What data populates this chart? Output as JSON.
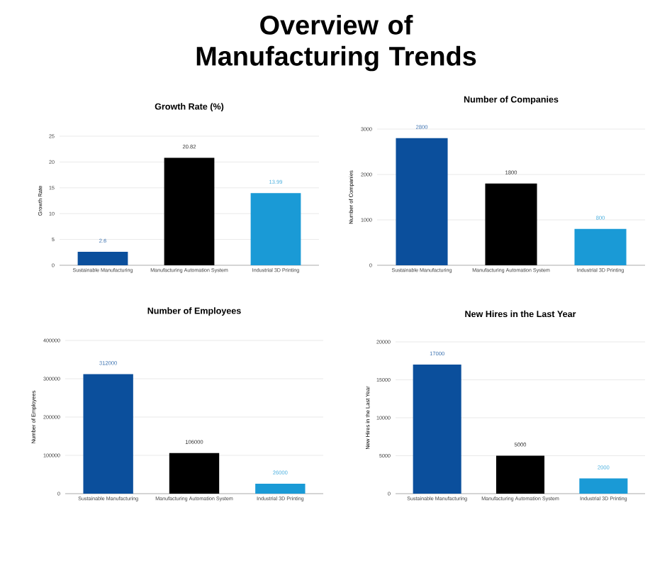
{
  "chart_data": [
    {
      "type": "other",
      "title": "Overview of Manufacturing Trends"
    },
    {
      "type": "bar",
      "title": "Growth Rate (%)",
      "ylabel": "Growth Rate",
      "categories": [
        "Sustainable Manufacturing",
        "Manufacturing Automation System",
        "Industrial 3D Printing"
      ],
      "values": [
        2.6,
        20.82,
        13.99
      ],
      "colors": [
        "#0b4f9c",
        "#000000",
        "#1a9ad6"
      ],
      "ylim": [
        0,
        25
      ],
      "yticks": [
        0,
        5,
        10,
        15,
        20,
        25
      ],
      "grid": "y",
      "data_labels": true
    },
    {
      "type": "bar",
      "title": "Number of Companies",
      "ylabel": "Number of Companies",
      "categories": [
        "Sustainable Manufacturing",
        "Manufacturing Automation System",
        "Industrial 3D Printing"
      ],
      "values": [
        2800,
        1800,
        800
      ],
      "colors": [
        "#0b4f9c",
        "#000000",
        "#1a9ad6"
      ],
      "ylim": [
        0,
        3000
      ],
      "yticks": [
        0,
        1000,
        2000,
        3000
      ],
      "grid": "y",
      "data_labels": true
    },
    {
      "type": "bar",
      "title": "Number of Employees",
      "ylabel": "Number of Employees",
      "categories": [
        "Sustainable Manufacturing",
        "Manufacturing Automation System",
        "Industrial 3D Printing"
      ],
      "values": [
        312000,
        106000,
        26000
      ],
      "colors": [
        "#0b4f9c",
        "#000000",
        "#1a9ad6"
      ],
      "ylim": [
        0,
        400000
      ],
      "yticks": [
        0,
        100000,
        200000,
        300000,
        400000
      ],
      "grid": "y",
      "data_labels": true
    },
    {
      "type": "bar",
      "title": "New Hires in the Last Year",
      "ylabel": "New Hires in the Last Year",
      "categories": [
        "Sustainable Manufacturing",
        "Manufacturing Automation System",
        "Industrial 3D Printing"
      ],
      "values": [
        17000,
        5000,
        2000
      ],
      "colors": [
        "#0b4f9c",
        "#000000",
        "#1a9ad6"
      ],
      "ylim": [
        0,
        20000
      ],
      "yticks": [
        0,
        5000,
        10000,
        15000,
        20000
      ],
      "grid": "y",
      "data_labels": true
    }
  ]
}
